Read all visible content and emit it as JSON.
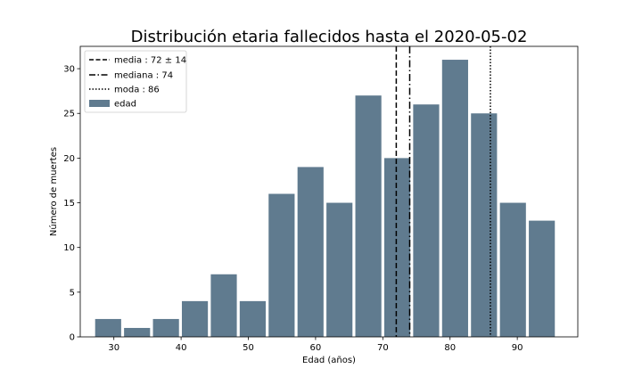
{
  "chart_data": {
    "type": "bar",
    "title": "Distribución etaria fallecidos hasta el 2020-05-02",
    "xlabel": "Edad (años)",
    "ylabel": "Número de muertes",
    "xlim": [
      25,
      99
    ],
    "ylim": [
      0,
      32.5
    ],
    "xticks": [
      30,
      40,
      50,
      60,
      70,
      80,
      90
    ],
    "yticks": [
      0,
      5,
      10,
      15,
      20,
      25,
      30
    ],
    "grid": false,
    "legend_position": "top-left",
    "bar_color": "#607b8f",
    "bins": [
      {
        "left": 27.0,
        "right": 31.3,
        "value": 2
      },
      {
        "left": 31.3,
        "right": 35.6,
        "value": 1
      },
      {
        "left": 35.6,
        "right": 39.9,
        "value": 2
      },
      {
        "left": 39.9,
        "right": 44.2,
        "value": 4
      },
      {
        "left": 44.2,
        "right": 48.5,
        "value": 7
      },
      {
        "left": 48.5,
        "right": 52.8,
        "value": 4
      },
      {
        "left": 52.8,
        "right": 57.1,
        "value": 16
      },
      {
        "left": 57.1,
        "right": 61.4,
        "value": 19
      },
      {
        "left": 61.4,
        "right": 65.7,
        "value": 15
      },
      {
        "left": 65.7,
        "right": 70.0,
        "value": 27
      },
      {
        "left": 70.0,
        "right": 74.3,
        "value": 20
      },
      {
        "left": 74.3,
        "right": 78.6,
        "value": 26
      },
      {
        "left": 78.6,
        "right": 82.9,
        "value": 31
      },
      {
        "left": 82.9,
        "right": 87.2,
        "value": 25
      },
      {
        "left": 87.2,
        "right": 91.5,
        "value": 15
      },
      {
        "left": 91.5,
        "right": 95.8,
        "value": 13
      }
    ],
    "vlines": [
      {
        "name": "media",
        "x": 72,
        "style": "dashed",
        "label": "media$: 72 \\pm 14$"
      },
      {
        "name": "mediana",
        "x": 74,
        "style": "dashdot",
        "label": "mediana$: 74$"
      },
      {
        "name": "moda",
        "x": 86,
        "style": "dotted",
        "label": "moda$: 86$"
      }
    ],
    "legend": [
      {
        "key": "media",
        "label": "media : 72 ± 14",
        "style": "dashed"
      },
      {
        "key": "mediana",
        "label": "mediana : 74",
        "style": "dashdot"
      },
      {
        "key": "moda",
        "label": "moda : 86",
        "style": "dotted"
      },
      {
        "key": "edad",
        "label": "edad",
        "style": "patch"
      }
    ]
  }
}
